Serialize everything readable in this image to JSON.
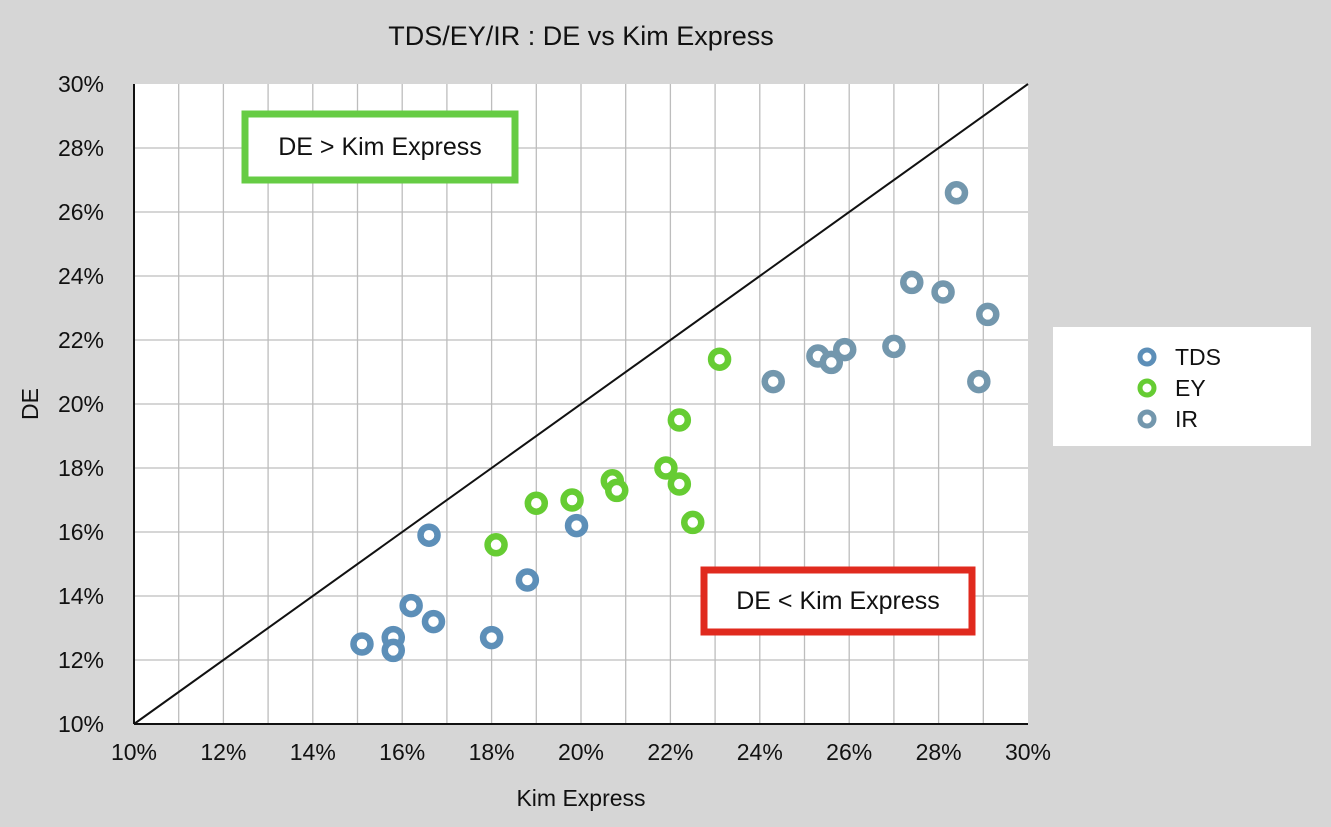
{
  "chart_data": {
    "type": "scatter",
    "title": "TDS/EY/IR : DE vs Kim Express",
    "xlabel": "Kim Express",
    "ylabel": "DE",
    "xlim": [
      0.1,
      0.3
    ],
    "ylim": [
      0.1,
      0.3
    ],
    "x_ticks": [
      "10%",
      "12%",
      "14%",
      "16%",
      "18%",
      "20%",
      "22%",
      "24%",
      "26%",
      "28%",
      "30%"
    ],
    "y_ticks": [
      "10%",
      "12%",
      "14%",
      "16%",
      "18%",
      "20%",
      "22%",
      "24%",
      "26%",
      "28%",
      "30%"
    ],
    "grid": "vertical lines every 1%, horizontal lines every 2%",
    "reference_line": "y = x diagonal",
    "legend_position": "right",
    "annotations": [
      {
        "text": "DE > Kim Express",
        "color": "#66cc44"
      },
      {
        "text": "DE < Kim Express",
        "color": "#e02a1e"
      }
    ],
    "series": [
      {
        "name": "TDS",
        "color": "#5d8fb8",
        "points": [
          [
            0.151,
            0.125
          ],
          [
            0.158,
            0.127
          ],
          [
            0.158,
            0.123
          ],
          [
            0.162,
            0.137
          ],
          [
            0.167,
            0.132
          ],
          [
            0.166,
            0.159
          ],
          [
            0.18,
            0.127
          ],
          [
            0.188,
            0.145
          ],
          [
            0.199,
            0.162
          ]
        ]
      },
      {
        "name": "EY",
        "color": "#66cc33",
        "points": [
          [
            0.181,
            0.156
          ],
          [
            0.19,
            0.169
          ],
          [
            0.198,
            0.17
          ],
          [
            0.207,
            0.176
          ],
          [
            0.208,
            0.173
          ],
          [
            0.219,
            0.18
          ],
          [
            0.222,
            0.195
          ],
          [
            0.222,
            0.175
          ],
          [
            0.225,
            0.163
          ],
          [
            0.231,
            0.214
          ]
        ]
      },
      {
        "name": "IR",
        "color": "#7397ad",
        "points": [
          [
            0.243,
            0.207
          ],
          [
            0.253,
            0.215
          ],
          [
            0.256,
            0.213
          ],
          [
            0.259,
            0.217
          ],
          [
            0.27,
            0.218
          ],
          [
            0.274,
            0.238
          ],
          [
            0.281,
            0.235
          ],
          [
            0.284,
            0.266
          ],
          [
            0.289,
            0.207
          ],
          [
            0.291,
            0.228
          ]
        ]
      }
    ]
  }
}
